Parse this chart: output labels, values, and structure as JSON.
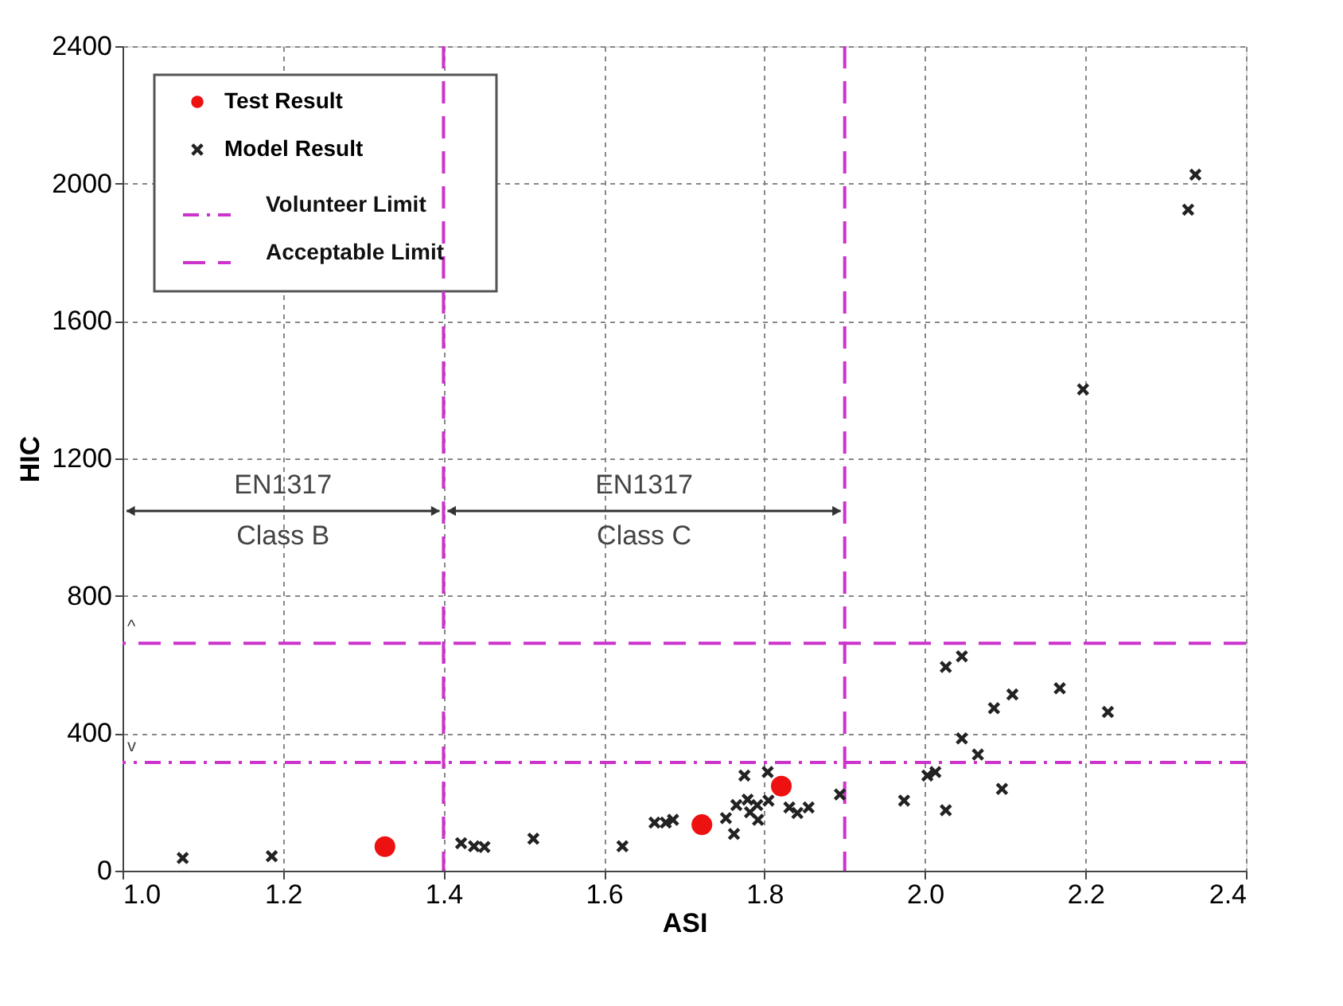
{
  "chart_data": {
    "type": "scatter",
    "xlabel": "ASI",
    "ylabel": "HIC",
    "xlim": [
      1.0,
      2.4
    ],
    "xticks": [
      {
        "value": 1.0,
        "label": "1.0"
      },
      1.2,
      1.4,
      1.6,
      1.8,
      {
        "value": 2.0,
        "label": "2.0"
      },
      2.2,
      2.4
    ],
    "ylim": [
      0,
      2400
    ],
    "yticks": [
      0,
      400,
      800,
      1200,
      1600,
      2000,
      2400
    ],
    "grid": true,
    "legend": "top left",
    "series": [
      {
        "name": "Test Result",
        "color": "#ee1111",
        "marker": "circle",
        "x": [
          1.327,
          1.722,
          1.821
        ],
        "values": [
          70,
          134,
          246
        ]
      },
      {
        "name": "Model Result",
        "color": "#222222",
        "marker": "cross",
        "x": [
          1.075,
          1.186,
          1.422,
          1.438,
          1.451,
          1.512,
          1.623,
          1.663,
          1.677,
          1.686,
          1.752,
          1.762,
          1.765,
          1.775,
          1.779,
          1.782,
          1.791,
          1.792,
          1.804,
          1.805,
          1.831,
          1.841,
          1.855,
          1.894,
          1.974,
          2.003,
          2.013,
          2.026,
          2.026,
          2.046,
          2.046,
          2.066,
          2.086,
          2.096,
          2.109,
          2.168,
          2.197,
          2.228,
          2.328,
          2.337
        ],
        "values": [
          37,
          42,
          80,
          71,
          69,
          93,
          71,
          140,
          140,
          148,
          153,
          107,
          191,
          277,
          207,
          170,
          191,
          148,
          287,
          204,
          184,
          168,
          184,
          222,
          204,
          277,
          287,
          176,
          593,
          385,
          624,
          338,
          473,
          238,
          513,
          531,
          1401,
          462,
          1924,
          2026
        ]
      }
    ],
    "ref_lines": [
      {
        "axis": "y",
        "value": 315,
        "label": "Volunteer Limit",
        "color": "#cc33cc",
        "line_style": "dashdot"
      },
      {
        "axis": "y",
        "value": 662,
        "label": "Acceptable Limit",
        "color": "#cc33cc",
        "line_style": "dashed"
      },
      {
        "axis": "x",
        "value": 1.4,
        "color": "#cc33cc",
        "line_style": "dashed"
      },
      {
        "axis": "x",
        "value": 1.9,
        "color": "#cc33cc",
        "line_style": "dashed"
      }
    ],
    "annotations": [
      "EN1317\nClass B",
      "EN1317\nClass C",
      {
        "text": "v",
        "x": 1.0,
        "y": 315
      },
      {
        "text": "^",
        "x": 1.0,
        "y": 662
      }
    ]
  }
}
